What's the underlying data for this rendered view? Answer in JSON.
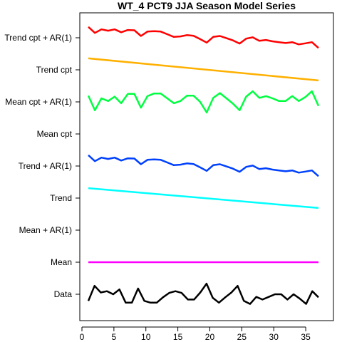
{
  "chart_data": {
    "type": "line",
    "title": "WT_4 PCT9 JJA Season Model Series",
    "xlabel": "",
    "ylabel": "",
    "xlim": [
      0,
      38
    ],
    "x_ticks": [
      0,
      5,
      10,
      15,
      20,
      25,
      30,
      35
    ],
    "grid": false,
    "legend": "none",
    "categories": [
      "Data",
      "Mean",
      "Mean + AR(1)",
      "Trend",
      "Trend + AR(1)",
      "Mean cpt",
      "Mean cpt + AR(1)",
      "Trend cpt",
      "Trend cpt + AR(1)"
    ],
    "series": [
      {
        "name": "Data",
        "color": "#000000",
        "category": 0,
        "offsets": [
          -0.3,
          0.38,
          0.08,
          0.14,
          0.0,
          0.22,
          -0.38,
          -0.38,
          0.26,
          -0.3,
          -0.38,
          -0.38,
          -0.14,
          0.06,
          0.14,
          0.06,
          -0.24,
          -0.24,
          0.08,
          0.48,
          -0.16,
          -0.38,
          -0.14,
          0.08,
          0.38,
          -0.3,
          -0.44,
          -0.12,
          -0.24,
          -0.12,
          0.0,
          0.0,
          -0.24,
          -0.0,
          -0.2,
          -0.44,
          0.14,
          -0.14
        ]
      },
      {
        "name": "Mean",
        "color": "#ff00ff",
        "category": 1,
        "offsets": [
          0.0,
          0.0
        ]
      },
      {
        "name": "Trend",
        "color": "#00ffff",
        "category": 3,
        "offsets": [
          0.45,
          -0.45
        ]
      },
      {
        "name": "Trend + AR(1)",
        "color": "#0040ff",
        "category": 4,
        "offsets": [
          0.49,
          0.22,
          0.38,
          0.32,
          0.38,
          0.25,
          0.35,
          0.34,
          0.08,
          0.28,
          0.3,
          0.28,
          0.16,
          0.04,
          0.06,
          0.12,
          0.09,
          -0.06,
          -0.22,
          0.04,
          0.08,
          -0.02,
          -0.12,
          -0.26,
          -0.04,
          0.02,
          -0.14,
          -0.1,
          -0.16,
          -0.2,
          -0.24,
          -0.2,
          -0.3,
          -0.25,
          -0.2,
          -0.46
        ]
      },
      {
        "name": "Mean cpt + AR(1)",
        "color": "#00ff40",
        "category": 6,
        "offsets": [
          0.28,
          -0.38,
          0.16,
          0.04,
          0.24,
          -0.06,
          0.36,
          0.36,
          -0.26,
          0.26,
          0.38,
          0.38,
          0.16,
          -0.06,
          0.04,
          0.28,
          0.28,
          0.0,
          -0.48,
          0.18,
          0.4,
          0.16,
          -0.08,
          -0.38,
          0.24,
          0.48,
          0.18,
          0.26,
          0.16,
          0.04,
          0.04,
          0.26,
          0.04,
          0.22,
          0.48,
          -0.18
        ]
      },
      {
        "name": "Trend cpt",
        "color": "#ffb000",
        "category": 7,
        "offsets": [
          0.52,
          -0.48
        ]
      },
      {
        "name": "Trend cpt + AR(1)",
        "color": "#ff0000",
        "category": 8,
        "offsets": [
          0.49,
          0.22,
          0.38,
          0.32,
          0.38,
          0.25,
          0.35,
          0.34,
          0.08,
          0.28,
          0.3,
          0.28,
          0.16,
          0.04,
          0.06,
          0.12,
          0.09,
          -0.06,
          -0.22,
          0.04,
          0.08,
          -0.02,
          -0.12,
          -0.26,
          -0.04,
          0.02,
          -0.14,
          -0.1,
          -0.16,
          -0.2,
          -0.24,
          -0.2,
          -0.3,
          -0.25,
          -0.2,
          -0.46
        ]
      }
    ]
  }
}
